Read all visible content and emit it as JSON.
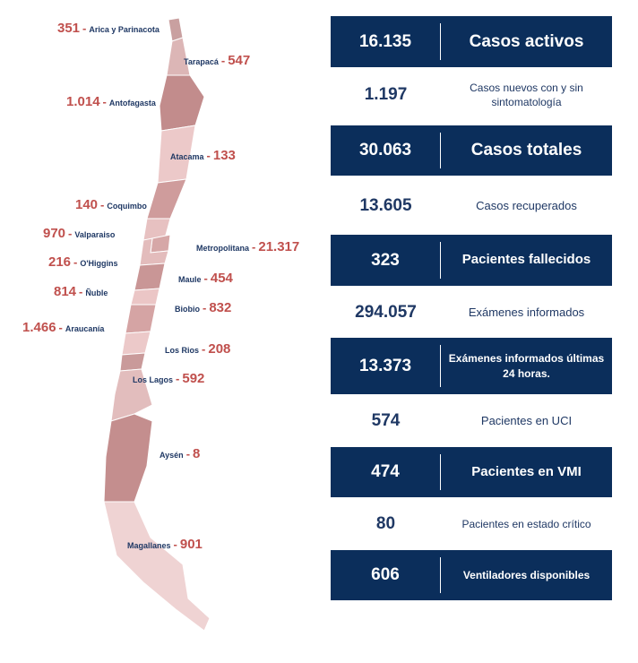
{
  "regions": [
    {
      "key": "arica",
      "name": "Arica y Parinacota",
      "value": "351"
    },
    {
      "key": "tarapaca",
      "name": "Tarapacá",
      "value": "547"
    },
    {
      "key": "antofagasta",
      "name": "Antofagasta",
      "value": "1.014"
    },
    {
      "key": "atacama",
      "name": "Atacama",
      "value": "133"
    },
    {
      "key": "coquimbo",
      "name": "Coquimbo",
      "value": "140"
    },
    {
      "key": "valparaiso",
      "name": "Valparaiso",
      "value": "970"
    },
    {
      "key": "metropolitana",
      "name": "Metropolitana",
      "value": "21.317"
    },
    {
      "key": "ohiggins",
      "name": "O'Higgins",
      "value": "216"
    },
    {
      "key": "maule",
      "name": "Maule",
      "value": "454"
    },
    {
      "key": "nuble",
      "name": "Ñuble",
      "value": "814"
    },
    {
      "key": "biobio",
      "name": "Biobio",
      "value": "832"
    },
    {
      "key": "araucania",
      "name": "Araucanía",
      "value": "1.466"
    },
    {
      "key": "losrios",
      "name": "Los Rios",
      "value": "208"
    },
    {
      "key": "loslagos",
      "name": "Los Lagos",
      "value": "592"
    },
    {
      "key": "aysen",
      "name": "Aysén",
      "value": "8"
    },
    {
      "key": "magallanes",
      "name": "Magallanes",
      "value": "901"
    }
  ],
  "stats": [
    {
      "value": "16.135",
      "label": "Casos activos"
    },
    {
      "value": "1.197",
      "label": "Casos nuevos con y sin sintomatología"
    },
    {
      "value": "30.063",
      "label": "Casos totales"
    },
    {
      "value": "13.605",
      "label": "Casos recuperados"
    },
    {
      "value": "323",
      "label": "Pacientes fallecidos"
    },
    {
      "value": "294.057",
      "label": "Exámenes informados"
    },
    {
      "value": "13.373",
      "label": "Exámenes informados últimas 24 horas."
    },
    {
      "value": "574",
      "label": "Pacientes en UCI"
    },
    {
      "value": "474",
      "label": "Pacientes en VMI"
    },
    {
      "value": "80",
      "label": "Pacientes en estado crítico"
    },
    {
      "value": "606",
      "label": "Ventiladores disponibles"
    }
  ],
  "colors": {
    "dark_band": "#0b2e5b",
    "number_red": "#c0504d",
    "region_name_navy": "#1f3864",
    "map_light": "#ecc9c9",
    "map_mid": "#d9a9a9",
    "map_dark": "#c28c8c"
  }
}
